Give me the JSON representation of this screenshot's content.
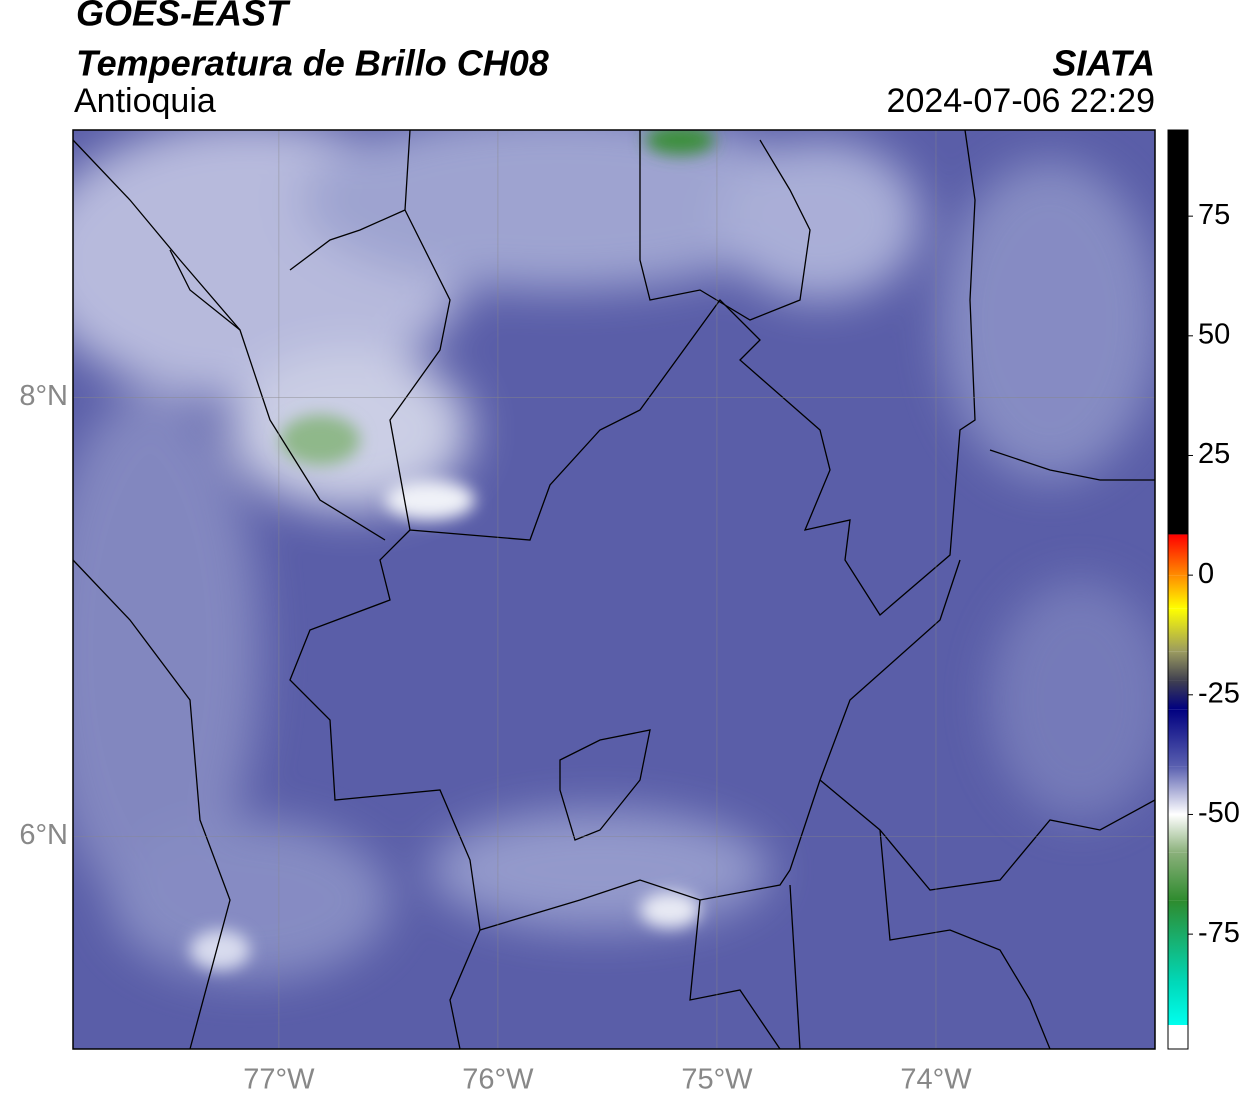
{
  "chart_data": {
    "type": "map",
    "title": "GOES-EAST",
    "subtitle": "Temperatura de Brillo CH08",
    "region": "Antioquia",
    "source": "SIATA",
    "timestamp": "2024-07-06 22:29",
    "xlim": [
      -77.94,
      -73.0
    ],
    "ylim": [
      5.03,
      9.22
    ],
    "xticks": [
      {
        "value": -77,
        "label": "77°W"
      },
      {
        "value": -76,
        "label": "76°W"
      },
      {
        "value": -75,
        "label": "75°W"
      },
      {
        "value": -74,
        "label": "74°W"
      }
    ],
    "yticks": [
      {
        "value": 8,
        "label": "8°N"
      },
      {
        "value": 6,
        "label": "6°N"
      }
    ],
    "grid": true,
    "colorbar": {
      "lim": [
        -99,
        93
      ],
      "ticks": [
        75,
        50,
        25,
        0,
        -25,
        -50,
        -75
      ],
      "stops": [
        {
          "value": 93,
          "color": "#000000"
        },
        {
          "value": 8.5,
          "color": "#000000"
        },
        {
          "value": 8.5,
          "color": "#ff0000"
        },
        {
          "value": 0,
          "color": "#ff8c00"
        },
        {
          "value": -7,
          "color": "#ffff00"
        },
        {
          "value": -16,
          "color": "#9a9a60"
        },
        {
          "value": -22,
          "color": "#404050"
        },
        {
          "value": -28,
          "color": "#000080"
        },
        {
          "value": -40,
          "color": "#5a60b0"
        },
        {
          "value": -50,
          "color": "#ffffff"
        },
        {
          "value": -58,
          "color": "#8ab07a"
        },
        {
          "value": -68,
          "color": "#2e8b2e"
        },
        {
          "value": -85,
          "color": "#00d8b8"
        },
        {
          "value": -94,
          "color": "#00ffee"
        },
        {
          "value": -94,
          "color": "#ffffff"
        },
        {
          "value": -99,
          "color": "#ffffff"
        }
      ]
    }
  }
}
